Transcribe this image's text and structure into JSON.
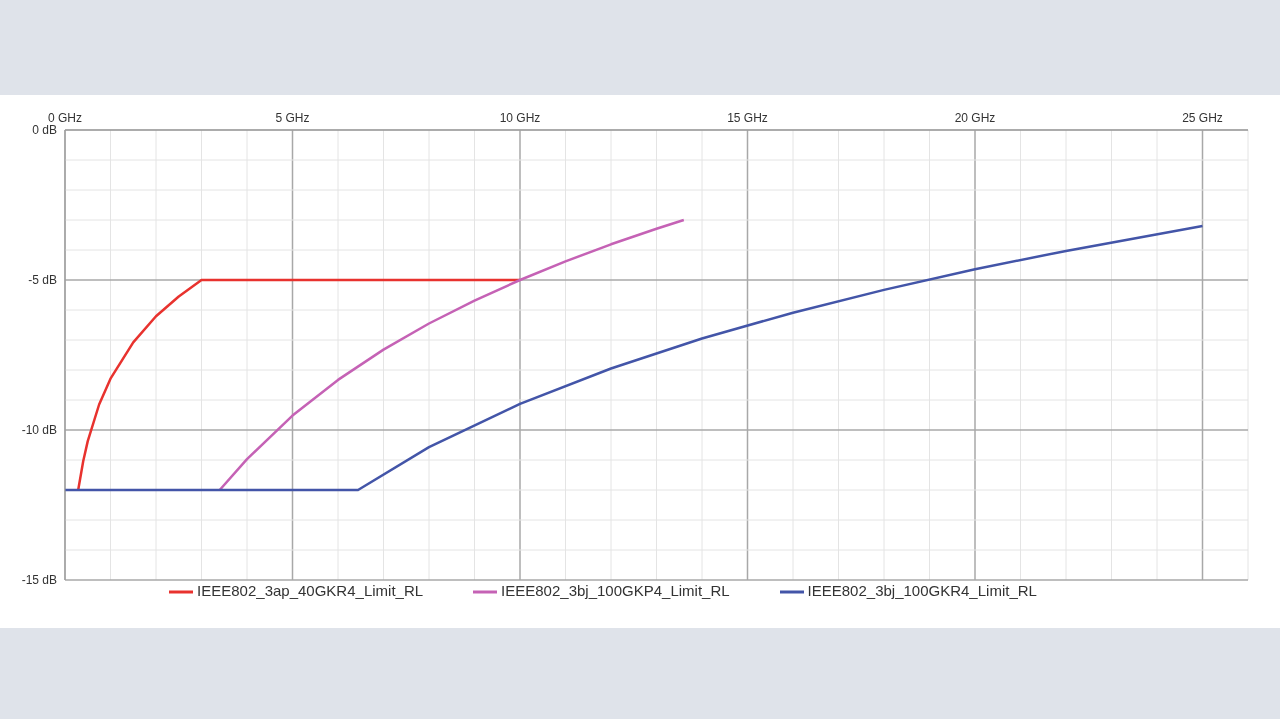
{
  "chart_data": {
    "type": "line",
    "xlim": [
      0,
      26
    ],
    "xticks": [
      {
        "value": 0,
        "label": "0 GHz"
      },
      {
        "value": 1,
        "label": null
      },
      {
        "value": 2,
        "label": null
      },
      {
        "value": 3,
        "label": null
      },
      {
        "value": 4,
        "label": null
      },
      {
        "value": 5,
        "label": "5 GHz"
      },
      {
        "value": 6,
        "label": null
      },
      {
        "value": 7,
        "label": null
      },
      {
        "value": 8,
        "label": null
      },
      {
        "value": 9,
        "label": null
      },
      {
        "value": 10,
        "label": "10 GHz"
      },
      {
        "value": 11,
        "label": null
      },
      {
        "value": 12,
        "label": null
      },
      {
        "value": 13,
        "label": null
      },
      {
        "value": 14,
        "label": null
      },
      {
        "value": 15,
        "label": "15 GHz"
      },
      {
        "value": 16,
        "label": null
      },
      {
        "value": 17,
        "label": null
      },
      {
        "value": 18,
        "label": null
      },
      {
        "value": 19,
        "label": null
      },
      {
        "value": 20,
        "label": "20 GHz"
      },
      {
        "value": 21,
        "label": null
      },
      {
        "value": 22,
        "label": null
      },
      {
        "value": 23,
        "label": null
      },
      {
        "value": 24,
        "label": null
      },
      {
        "value": 25,
        "label": "25 GHz"
      },
      {
        "value": 26,
        "label": null
      }
    ],
    "ylim": [
      -15,
      0
    ],
    "yticks": [
      {
        "value": 0,
        "label": "0 dB"
      },
      {
        "value": -1,
        "label": null
      },
      {
        "value": -2,
        "label": null
      },
      {
        "value": -3,
        "label": null
      },
      {
        "value": -4,
        "label": null
      },
      {
        "value": -5,
        "label": "-5 dB"
      },
      {
        "value": -6,
        "label": null
      },
      {
        "value": -7,
        "label": null
      },
      {
        "value": -8,
        "label": null
      },
      {
        "value": -9,
        "label": null
      },
      {
        "value": -10,
        "label": "-10 dB"
      },
      {
        "value": -11,
        "label": null
      },
      {
        "value": -12,
        "label": null
      },
      {
        "value": -13,
        "label": null
      },
      {
        "value": -14,
        "label": null
      },
      {
        "value": -15,
        "label": "-15 dB"
      }
    ],
    "grid": true,
    "legend": "bottom",
    "marker": "none",
    "line_style": "solid",
    "series": [
      {
        "name": "IEEE802_3ap_40GKR4_Limit_RL",
        "color": "#e8322e",
        "x": [
          0.29,
          0.4,
          0.5,
          0.75,
          1,
          1.5,
          2,
          2.5,
          3,
          10
        ],
        "values": [
          -12.0,
          -11.04,
          -10.37,
          -9.15,
          -8.29,
          -7.08,
          -6.21,
          -5.55,
          -5,
          -5
        ]
      },
      {
        "name": "IEEE802_3bj_100GKP4_Limit_RL",
        "color": "#c562b5",
        "x": [
          3.4,
          4,
          5,
          6,
          7,
          8,
          9,
          10,
          11,
          12,
          13,
          13.6
        ],
        "values": [
          -12.0,
          -10.97,
          -9.52,
          -8.33,
          -7.32,
          -6.45,
          -5.69,
          -5,
          -4.38,
          -3.81,
          -3.29,
          -3.0
        ]
      },
      {
        "name": "IEEE802_3bj_100GKR4_Limit_RL",
        "color": "#4355a8",
        "x": [
          0,
          6.44,
          8,
          10,
          12,
          14,
          16,
          18,
          20,
          22,
          25
        ],
        "values": [
          -12,
          -12,
          -10.57,
          -9.13,
          -7.95,
          -6.95,
          -6.09,
          -5.33,
          -4.64,
          -4.03,
          -3.2
        ]
      }
    ]
  }
}
